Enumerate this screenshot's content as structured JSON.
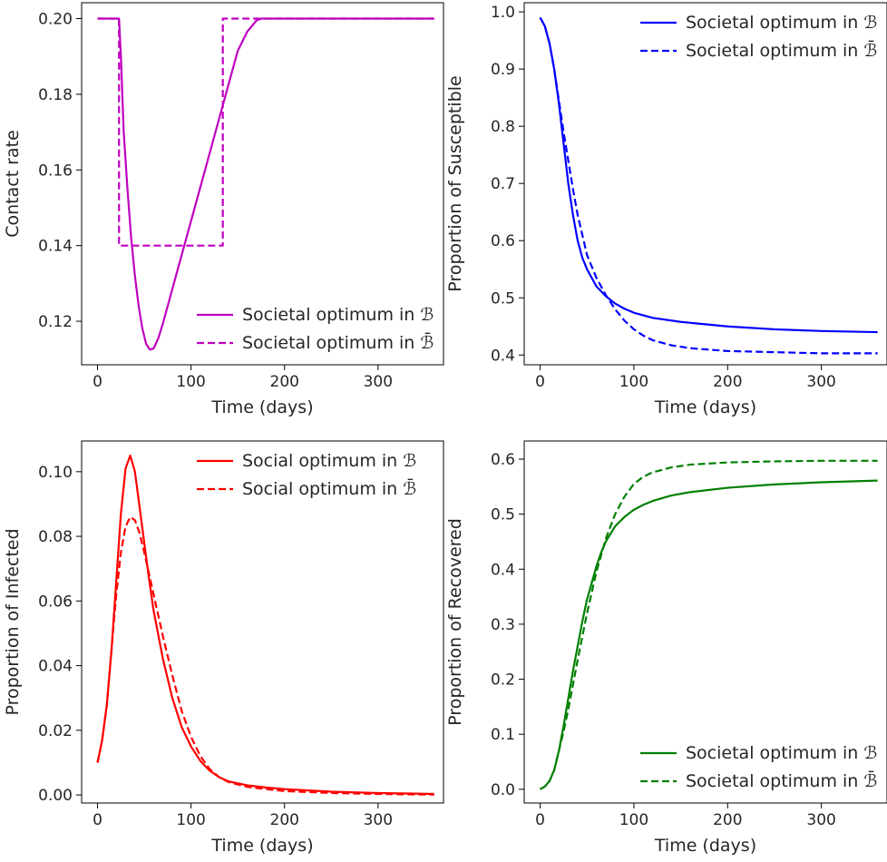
{
  "chart_data": [
    {
      "type": "line",
      "xlabel": "Time (days)",
      "ylabel": "Contact rate",
      "xlim": [
        -17,
        370
      ],
      "ylim": [
        0.1085,
        0.2042
      ],
      "xticks": [
        0,
        100,
        200,
        300
      ],
      "yticks": [
        0.12,
        0.14,
        0.16,
        0.18,
        0.2
      ],
      "ytick_labels": [
        "0.12",
        "0.14",
        "0.16",
        "0.18",
        "0.20"
      ],
      "legend_position": "lower-right",
      "grid": false,
      "series": [
        {
          "name": "Societal optimum in ℬ",
          "color": "#bf00bf",
          "dash": "solid",
          "x": [
            0,
            23,
            25,
            28,
            32,
            36,
            40,
            44,
            48,
            52,
            56,
            60,
            65,
            70,
            80,
            90,
            100,
            110,
            120,
            130,
            140,
            150,
            160,
            170,
            175,
            360
          ],
          "y": [
            0.2,
            0.2,
            0.19,
            0.17,
            0.155,
            0.142,
            0.132,
            0.124,
            0.118,
            0.114,
            0.1125,
            0.1128,
            0.1155,
            0.1195,
            0.1285,
            0.1375,
            0.1465,
            0.1555,
            0.1645,
            0.1735,
            0.1825,
            0.1915,
            0.1965,
            0.1995,
            0.2,
            0.2
          ]
        },
        {
          "name": "Societal optimum in ℬ̄",
          "color": "#bf00bf",
          "dash": "dashed",
          "x": [
            0,
            23,
            23,
            134,
            134,
            360
          ],
          "y": [
            0.2,
            0.2,
            0.14,
            0.14,
            0.2,
            0.2
          ]
        }
      ]
    },
    {
      "type": "line",
      "xlabel": "Time (days)",
      "ylabel": "Proportion of Susceptible",
      "xlim": [
        -17,
        370
      ],
      "ylim": [
        0.383,
        1.016
      ],
      "xticks": [
        0,
        100,
        200,
        300
      ],
      "yticks": [
        0.4,
        0.5,
        0.6,
        0.7,
        0.8,
        0.9,
        1.0
      ],
      "ytick_labels": [
        "0.4",
        "0.5",
        "0.6",
        "0.7",
        "0.8",
        "0.9",
        "1.0"
      ],
      "legend_position": "upper-right",
      "grid": false,
      "series": [
        {
          "name": "Societal optimum in ℬ",
          "color": "#0000ff",
          "dash": "solid",
          "x": [
            0,
            5,
            10,
            15,
            20,
            25,
            30,
            35,
            40,
            45,
            50,
            55,
            60,
            70,
            80,
            90,
            100,
            120,
            150,
            200,
            250,
            300,
            360
          ],
          "y": [
            0.99,
            0.975,
            0.945,
            0.9,
            0.84,
            0.77,
            0.7,
            0.645,
            0.6,
            0.57,
            0.55,
            0.535,
            0.52,
            0.503,
            0.49,
            0.481,
            0.474,
            0.465,
            0.458,
            0.45,
            0.445,
            0.442,
            0.44
          ]
        },
        {
          "name": "Societal optimum in ℬ̄",
          "color": "#0000ff",
          "dash": "dashed",
          "x": [
            0,
            5,
            10,
            15,
            20,
            25,
            30,
            35,
            40,
            50,
            60,
            70,
            80,
            90,
            100,
            110,
            120,
            140,
            160,
            200,
            250,
            300,
            360
          ],
          "y": [
            0.99,
            0.975,
            0.945,
            0.9,
            0.845,
            0.79,
            0.74,
            0.69,
            0.645,
            0.575,
            0.535,
            0.505,
            0.48,
            0.46,
            0.445,
            0.434,
            0.426,
            0.417,
            0.412,
            0.407,
            0.405,
            0.403,
            0.403
          ]
        }
      ]
    },
    {
      "type": "line",
      "xlabel": "Time (days)",
      "ylabel": "Proportion of Infected",
      "xlim": [
        -17,
        370
      ],
      "ylim": [
        -0.0025,
        0.1095
      ],
      "xticks": [
        0,
        100,
        200,
        300
      ],
      "yticks": [
        0.0,
        0.02,
        0.04,
        0.06,
        0.08,
        0.1
      ],
      "ytick_labels": [
        "0.00",
        "0.02",
        "0.04",
        "0.06",
        "0.08",
        "0.10"
      ],
      "legend_position": "upper-right",
      "grid": false,
      "series": [
        {
          "name": "Social optimum in ℬ",
          "color": "#ff0000",
          "dash": "solid",
          "x": [
            0,
            5,
            10,
            15,
            20,
            25,
            30,
            35,
            40,
            45,
            50,
            55,
            60,
            70,
            80,
            90,
            100,
            110,
            120,
            130,
            140,
            160,
            180,
            200,
            250,
            300,
            360
          ],
          "y": [
            0.01,
            0.017,
            0.028,
            0.045,
            0.066,
            0.087,
            0.101,
            0.105,
            0.1,
            0.089,
            0.078,
            0.067,
            0.057,
            0.042,
            0.03,
            0.021,
            0.015,
            0.0105,
            0.0075,
            0.0055,
            0.0042,
            0.003,
            0.0023,
            0.0018,
            0.001,
            0.0006,
            0.0003
          ]
        },
        {
          "name": "Social optimum in ℬ̄",
          "color": "#ff0000",
          "dash": "dashed",
          "x": [
            0,
            5,
            10,
            15,
            20,
            25,
            30,
            35,
            40,
            45,
            50,
            60,
            70,
            80,
            90,
            100,
            110,
            120,
            130,
            140,
            160,
            180,
            200,
            250,
            300,
            360
          ],
          "y": [
            0.01,
            0.017,
            0.028,
            0.045,
            0.062,
            0.075,
            0.083,
            0.086,
            0.085,
            0.081,
            0.075,
            0.062,
            0.049,
            0.037,
            0.026,
            0.018,
            0.012,
            0.008,
            0.0055,
            0.004,
            0.0025,
            0.0018,
            0.0012,
            0.0006,
            0.0003,
            0.0001
          ]
        }
      ]
    },
    {
      "type": "line",
      "xlabel": "Time (days)",
      "ylabel": "Proportion of Recovered",
      "xlim": [
        -17,
        370
      ],
      "ylim": [
        -0.025,
        0.633
      ],
      "xticks": [
        0,
        100,
        200,
        300
      ],
      "yticks": [
        0.0,
        0.1,
        0.2,
        0.3,
        0.4,
        0.5,
        0.6
      ],
      "ytick_labels": [
        "0.0",
        "0.1",
        "0.2",
        "0.3",
        "0.4",
        "0.5",
        "0.6"
      ],
      "legend_position": "lower-right",
      "grid": false,
      "series": [
        {
          "name": "Societal optimum in ℬ",
          "color": "#008000",
          "dash": "solid",
          "x": [
            0,
            5,
            10,
            15,
            20,
            25,
            30,
            35,
            40,
            45,
            50,
            55,
            60,
            65,
            70,
            80,
            90,
            100,
            110,
            120,
            140,
            160,
            200,
            250,
            300,
            360
          ],
          "y": [
            0,
            0.005,
            0.015,
            0.035,
            0.07,
            0.115,
            0.165,
            0.215,
            0.26,
            0.305,
            0.345,
            0.375,
            0.405,
            0.43,
            0.45,
            0.478,
            0.495,
            0.508,
            0.517,
            0.524,
            0.534,
            0.54,
            0.548,
            0.554,
            0.558,
            0.561
          ]
        },
        {
          "name": "Societal optimum in ℬ̄",
          "color": "#008000",
          "dash": "dashed",
          "x": [
            0,
            5,
            10,
            15,
            20,
            25,
            30,
            35,
            40,
            50,
            60,
            70,
            80,
            90,
            100,
            110,
            120,
            140,
            160,
            200,
            250,
            300,
            360
          ],
          "y": [
            0,
            0.005,
            0.015,
            0.035,
            0.07,
            0.105,
            0.145,
            0.19,
            0.235,
            0.32,
            0.395,
            0.455,
            0.5,
            0.532,
            0.555,
            0.568,
            0.576,
            0.585,
            0.59,
            0.594,
            0.596,
            0.597,
            0.597
          ]
        }
      ]
    }
  ]
}
